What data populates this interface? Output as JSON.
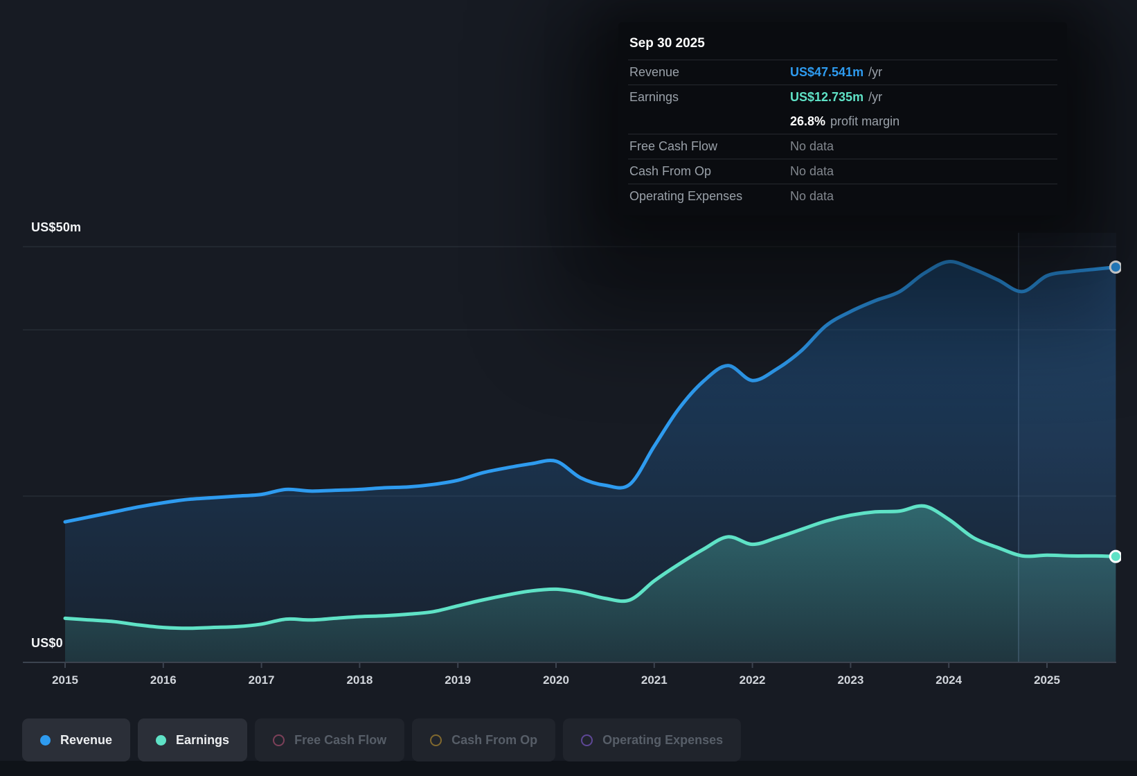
{
  "tooltip": {
    "title": "Sep 30 2025",
    "rows": [
      {
        "label": "Revenue",
        "value": "US$47.541m",
        "suffix": "/yr",
        "value_color": "#2e9bef",
        "bold": true,
        "border": true
      },
      {
        "label": "Earnings",
        "value": "US$12.735m",
        "suffix": "/yr",
        "value_color": "#5fe2c6",
        "bold": true,
        "border": true
      },
      {
        "label": "",
        "value": "26.8%",
        "suffix": "profit margin",
        "value_color": "#ffffff",
        "bold": true,
        "border": false
      },
      {
        "label": "Free Cash Flow",
        "value": "No data",
        "suffix": "",
        "value_color": "#81868d",
        "bold": false,
        "border": true
      },
      {
        "label": "Cash From Op",
        "value": "No data",
        "suffix": "",
        "value_color": "#81868d",
        "bold": false,
        "border": true
      },
      {
        "label": "Operating Expenses",
        "value": "No data",
        "suffix": "",
        "value_color": "#81868d",
        "bold": false,
        "border": true
      }
    ]
  },
  "legend": {
    "items": [
      {
        "label": "Revenue",
        "marker": "dot",
        "color": "#2e9bef",
        "active": true
      },
      {
        "label": "Earnings",
        "marker": "dot",
        "color": "#5fe2c6",
        "active": true
      },
      {
        "label": "Free Cash Flow",
        "marker": "ring",
        "color": "#7c4059",
        "active": false
      },
      {
        "label": "Cash From Op",
        "marker": "ring",
        "color": "#80682e",
        "active": false
      },
      {
        "label": "Operating Expenses",
        "marker": "ring",
        "color": "#5e4796",
        "active": false
      }
    ]
  },
  "chart_data": {
    "type": "area",
    "title": "",
    "ylabel": "US$ millions",
    "ylim": [
      0,
      50
    ],
    "unit_prefix": "US$",
    "y_axis_labels": [
      {
        "text": "US$50m",
        "value": 50
      },
      {
        "text": "US$0",
        "value": 0
      }
    ],
    "gridline_values": [
      50,
      40,
      20
    ],
    "x_ticks": [
      2015,
      2016,
      2017,
      2018,
      2019,
      2020,
      2021,
      2022,
      2023,
      2024,
      2025
    ],
    "divider_year": 2024.71,
    "x": [
      2015.0,
      2015.25,
      2015.5,
      2015.75,
      2016.0,
      2016.25,
      2016.5,
      2016.75,
      2017.0,
      2017.25,
      2017.5,
      2017.75,
      2018.0,
      2018.25,
      2018.5,
      2018.75,
      2019.0,
      2019.25,
      2019.5,
      2019.75,
      2020.0,
      2020.25,
      2020.5,
      2020.75,
      2021.0,
      2021.25,
      2021.5,
      2021.75,
      2022.0,
      2022.25,
      2022.5,
      2022.75,
      2023.0,
      2023.25,
      2023.5,
      2023.75,
      2024.0,
      2024.25,
      2024.5,
      2024.75,
      2025.0,
      2025.25,
      2025.5,
      2025.7
    ],
    "series": [
      {
        "name": "Revenue",
        "color": "#2e9bef",
        "values": [
          16.9,
          17.5,
          18.1,
          18.7,
          19.2,
          19.6,
          19.8,
          20.0,
          20.2,
          20.8,
          20.6,
          20.7,
          20.8,
          21.0,
          21.1,
          21.4,
          21.9,
          22.8,
          23.4,
          23.9,
          24.2,
          22.2,
          21.3,
          21.4,
          26.0,
          30.5,
          33.8,
          35.7,
          33.9,
          35.3,
          37.5,
          40.5,
          42.2,
          43.5,
          44.6,
          46.8,
          48.2,
          47.3,
          46.0,
          44.6,
          46.5,
          47.0,
          47.3,
          47.541
        ]
      },
      {
        "name": "Earnings",
        "color": "#5fe2c6",
        "values": [
          5.3,
          5.1,
          4.9,
          4.5,
          4.2,
          4.1,
          4.2,
          4.3,
          4.6,
          5.2,
          5.1,
          5.3,
          5.5,
          5.6,
          5.8,
          6.1,
          6.8,
          7.5,
          8.1,
          8.6,
          8.8,
          8.4,
          7.7,
          7.5,
          9.8,
          11.8,
          13.6,
          15.1,
          14.2,
          15.0,
          16.0,
          17.0,
          17.7,
          18.1,
          18.2,
          18.8,
          17.2,
          15.0,
          13.8,
          12.8,
          12.9,
          12.8,
          12.8,
          12.735
        ]
      }
    ],
    "legend_position": "bottom",
    "grid": "horizontal-only"
  },
  "colors": {
    "page_bg": "#171b23",
    "gridline": "#272c35",
    "axis_line": "#3c434f",
    "revenue_line": "#2e9bef",
    "earnings_line": "#5fe2c6",
    "divider_line": "rgba(150,185,225,0.25)",
    "recent_band_fill": "rgba(110,160,215,0.05)"
  }
}
